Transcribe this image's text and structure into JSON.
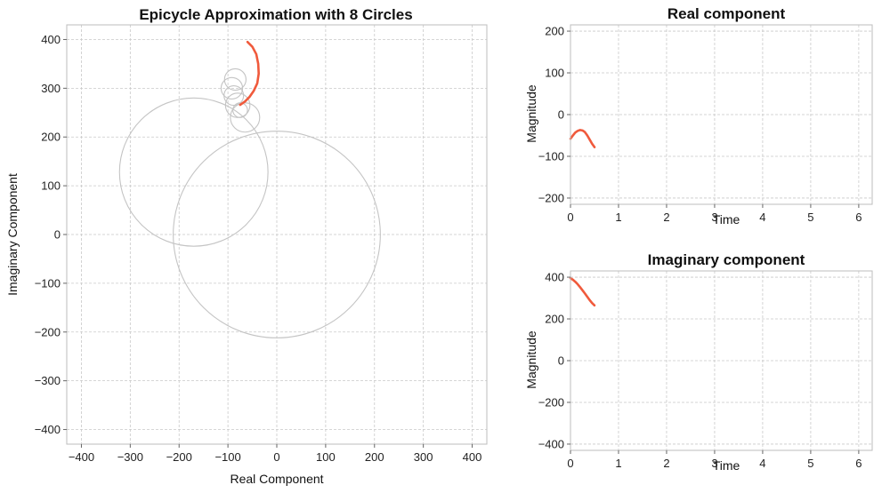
{
  "chart_data": [
    {
      "type": "line",
      "title": "Epicycle Approximation with 8 Circles",
      "xlabel": "Real Component",
      "ylabel": "Imaginary Component",
      "xlim": [
        -430,
        430
      ],
      "ylim": [
        -430,
        430
      ],
      "xticks": [
        -400,
        -300,
        -200,
        -100,
        0,
        100,
        200,
        300,
        400
      ],
      "yticks": [
        -400,
        -300,
        -200,
        -100,
        0,
        100,
        200,
        300,
        400
      ],
      "xtick_labels": [
        "−400",
        "−300",
        "−200",
        "−100",
        "0",
        "100",
        "200",
        "300",
        "400"
      ],
      "ytick_labels": [
        "−400",
        "−300",
        "−200",
        "−100",
        "0",
        "100",
        "200",
        "300",
        "400"
      ],
      "grid": true,
      "circles": [
        {
          "cx": 0,
          "cy": 0,
          "r": 212
        },
        {
          "cx": -170,
          "cy": 128,
          "r": 152
        },
        {
          "cx": -65,
          "cy": 240,
          "r": 30
        },
        {
          "cx": -80,
          "cy": 265,
          "r": 25
        },
        {
          "cx": -92,
          "cy": 300,
          "r": 22
        },
        {
          "cx": -88,
          "cy": 285,
          "r": 20
        },
        {
          "cx": -85,
          "cy": 318,
          "r": 22
        },
        {
          "cx": -75,
          "cy": 255,
          "r": 15
        }
      ],
      "series": [
        {
          "color": "#f05a3c",
          "x": [
            -60,
            -50,
            -42,
            -38,
            -37,
            -40,
            -47,
            -56,
            -65,
            -75
          ],
          "y": [
            395,
            385,
            370,
            350,
            330,
            310,
            295,
            282,
            273,
            266
          ]
        }
      ]
    },
    {
      "type": "line",
      "title": "Real component",
      "xlabel": "Time",
      "ylabel": "Magnitude",
      "xlim": [
        0,
        6.28
      ],
      "ylim": [
        -215,
        215
      ],
      "xticks": [
        0,
        1,
        2,
        3,
        4,
        5,
        6
      ],
      "yticks": [
        -200,
        -100,
        0,
        100,
        200
      ],
      "xtick_labels": [
        "0",
        "1",
        "2",
        "3",
        "4",
        "5",
        "6"
      ],
      "ytick_labels": [
        "−200",
        "−100",
        "0",
        "100",
        "200"
      ],
      "grid": true,
      "series": [
        {
          "color": "#f05a3c",
          "x": [
            0,
            0.05,
            0.1,
            0.15,
            0.2,
            0.25,
            0.3,
            0.35,
            0.4,
            0.45,
            0.5
          ],
          "y": [
            -58,
            -50,
            -43,
            -39,
            -37,
            -38,
            -42,
            -50,
            -60,
            -70,
            -78
          ]
        }
      ]
    },
    {
      "type": "line",
      "title": "Imaginary component",
      "xlabel": "Time",
      "ylabel": "Magnitude",
      "xlim": [
        0,
        6.28
      ],
      "ylim": [
        -430,
        430
      ],
      "xticks": [
        0,
        1,
        2,
        3,
        4,
        5,
        6
      ],
      "yticks": [
        -400,
        -200,
        0,
        200,
        400
      ],
      "xtick_labels": [
        "0",
        "1",
        "2",
        "3",
        "4",
        "5",
        "6"
      ],
      "ytick_labels": [
        "−400",
        "−200",
        "0",
        "200",
        "400"
      ],
      "grid": true,
      "series": [
        {
          "color": "#f05a3c",
          "x": [
            0,
            0.05,
            0.1,
            0.15,
            0.2,
            0.25,
            0.3,
            0.35,
            0.4,
            0.45,
            0.5
          ],
          "y": [
            395,
            388,
            378,
            366,
            352,
            337,
            322,
            306,
            290,
            276,
            265
          ]
        }
      ]
    }
  ]
}
